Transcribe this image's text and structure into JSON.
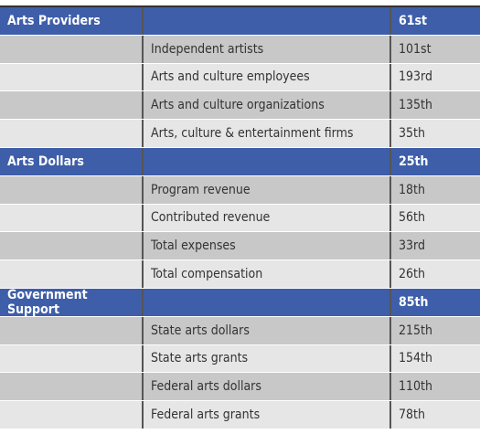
{
  "sections": [
    {
      "title": "Arts Providers",
      "rank": "61st",
      "items": [
        {
          "label": "Independent artists",
          "rank": "101st"
        },
        {
          "label": "Arts and culture employees",
          "rank": "193rd"
        },
        {
          "label": "Arts and culture organizations",
          "rank": "135th"
        },
        {
          "label": "Arts, culture & entertainment firms",
          "rank": "35th"
        }
      ]
    },
    {
      "title": "Arts Dollars",
      "rank": "25th",
      "items": [
        {
          "label": "Program revenue",
          "rank": "18th"
        },
        {
          "label": "Contributed revenue",
          "rank": "56th"
        },
        {
          "label": "Total expenses",
          "rank": "33rd"
        },
        {
          "label": "Total compensation",
          "rank": "26th"
        }
      ]
    },
    {
      "title": "Government Support",
      "rank": "85th",
      "items": [
        {
          "label": "State arts dollars",
          "rank": "215th"
        },
        {
          "label": "State arts grants",
          "rank": "154th"
        },
        {
          "label": "Federal arts dollars",
          "rank": "110th"
        },
        {
          "label": "Federal arts grants",
          "rank": "78th"
        }
      ]
    }
  ]
}
